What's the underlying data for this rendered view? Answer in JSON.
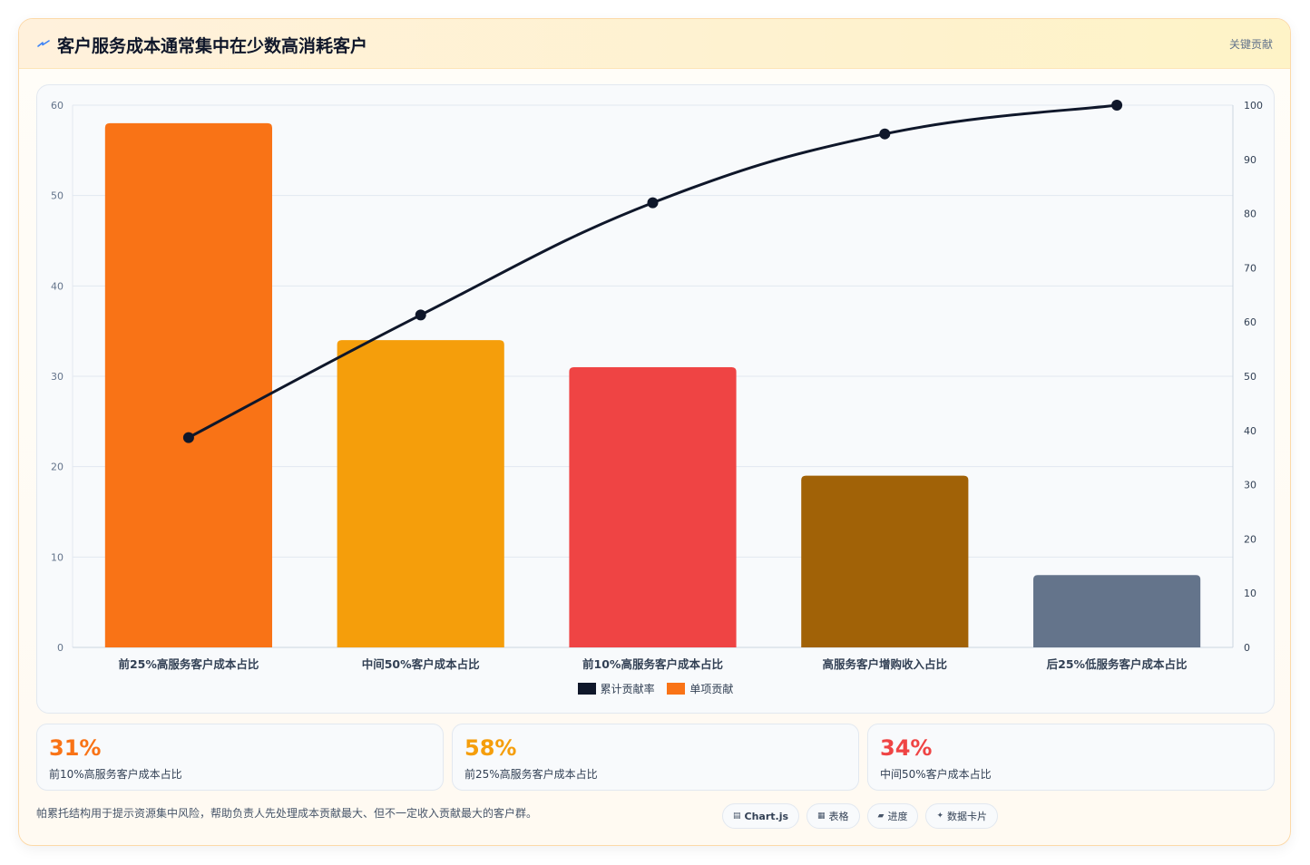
{
  "header": {
    "title_icon": "lightning-icon",
    "title": "客户服务成本通常集中在少数高消耗客户",
    "right_label": "关键贡献"
  },
  "chart_data": {
    "type": "bar",
    "categories": [
      "前25%高服务客户成本占比",
      "中间50%客户成本占比",
      "前10%高服务客户成本占比",
      "高服务客户增购收入占比",
      "后25%低服务客户成本占比"
    ],
    "series": [
      {
        "name": "单项贡献",
        "type": "bar",
        "axis": "left",
        "values": [
          58,
          34,
          31,
          19,
          8
        ],
        "colors": [
          "#f97316",
          "#f59e0b",
          "#ef4444",
          "#a16207",
          "#64748b"
        ]
      },
      {
        "name": "累计贡献率",
        "type": "line",
        "axis": "right",
        "values": [
          38.7,
          61.3,
          82,
          94.7,
          100
        ],
        "color": "#0f172a"
      }
    ],
    "y_left": {
      "min": 0,
      "max": 60,
      "ticks": [
        0,
        10,
        20,
        30,
        40,
        50,
        60
      ]
    },
    "y_right": {
      "min": 0,
      "max": 100,
      "ticks": [
        0,
        10,
        20,
        30,
        40,
        50,
        60,
        70,
        80,
        90,
        100
      ]
    },
    "grid": true,
    "legend_position": "bottom"
  },
  "legend": [
    {
      "label": "累计贡献率",
      "color": "#0f172a"
    },
    {
      "label": "单项贡献",
      "color": "#f97316"
    }
  ],
  "stats": [
    {
      "value": "31%",
      "label": "前10%高服务客户成本占比",
      "color": "#f97316"
    },
    {
      "value": "58%",
      "label": "前25%高服务客户成本占比",
      "color": "#f59e0b"
    },
    {
      "value": "34%",
      "label": "中间50%客户成本占比",
      "color": "#ef4444"
    }
  ],
  "footnote": "帕累托结构用于提示资源集中风险，帮助负责人先处理成本贡献最大、但不一定收入贡献最大的客户群。",
  "chips": [
    {
      "icon": "▤",
      "icon_name": "chart-icon",
      "label": "Chart.js"
    },
    {
      "icon": "▦",
      "icon_name": "table-icon",
      "label": "表格"
    },
    {
      "icon": "▰",
      "icon_name": "progress-icon",
      "label": "进度"
    },
    {
      "icon": "✦",
      "icon_name": "sparkle-icon",
      "label": "数据卡片"
    }
  ]
}
